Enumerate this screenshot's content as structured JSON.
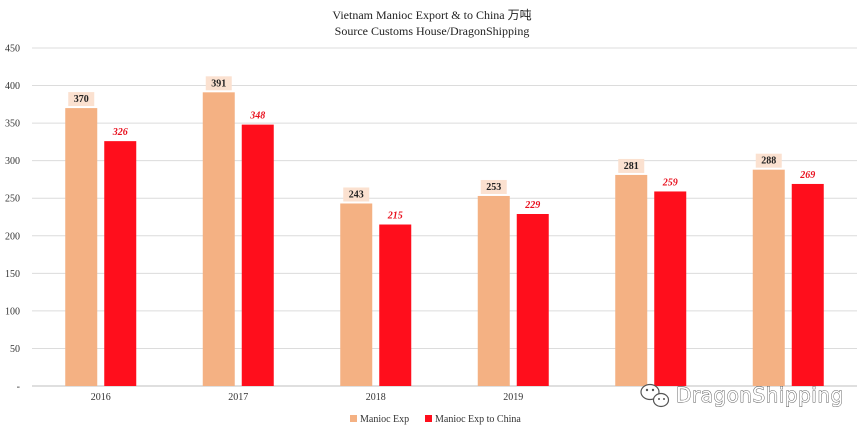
{
  "chart_data": {
    "type": "bar",
    "title": "Vietnam Manioc Export & to China 万吨",
    "subtitle": "Source Customs House/DragonShipping",
    "categories": [
      "2016",
      "2017",
      "2018",
      "2019",
      "",
      ""
    ],
    "series": [
      {
        "name": "Manioc Exp",
        "values": [
          370,
          391,
          243,
          253,
          281,
          288
        ],
        "color": "#f4b183"
      },
      {
        "name": "Manioc Exp to China",
        "values": [
          326,
          348,
          215,
          229,
          259,
          269
        ],
        "color": "#ff0e1c"
      }
    ],
    "y_ticks": [
      "-",
      "50",
      "100",
      "150",
      "200",
      "250",
      "300",
      "350",
      "400",
      "450"
    ],
    "ylim": [
      0,
      450
    ],
    "grid": true,
    "legend": "bottom",
    "label_bg_color": "#fbe1d0"
  },
  "watermark": {
    "text": "DragonShipping",
    "icon": "wechat-icon"
  }
}
